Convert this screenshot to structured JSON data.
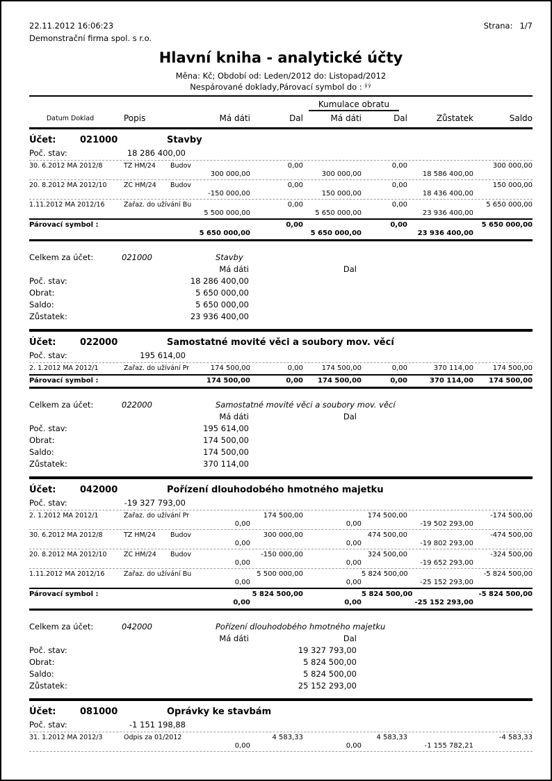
{
  "header": {
    "printed_at": "22.11.2012 16:06:23",
    "company": "Demonstrační firma spol. s r.o.",
    "page_label": "Strana:",
    "page_number": "1/7",
    "title": "Hlavní kniha - analytické účty",
    "subtitle_period": "Měna: Kč; Období od: Leden/2012 do: Listopad/2012",
    "subtitle_filter": "Nespárované doklady,Párovací symbol do : ",
    "subtitle_filter_suffix": "ÿÿ"
  },
  "columns": {
    "datum": "Datum Doklad",
    "popis": "Popis",
    "ma_dati": "Má dáti",
    "dal": "Dal",
    "kumulace": "Kumulace obratu",
    "kum_ma_dati": "Má dáti",
    "kum_dal": "Dal",
    "zustatek": "Zůstatek",
    "saldo": "Saldo"
  },
  "labels": {
    "ucet": "Účet:",
    "poc_stav": "Poč. stav:",
    "parovaci": "Párovací symbol :",
    "celkem": "Celkem za účet:",
    "ma_dati": "Má dáti",
    "dal": "Dal"
  },
  "summary_row_labels": [
    "Poč. stav:",
    "Obrat:",
    "Saldo:",
    "Zůstatek:"
  ],
  "accounts": [
    {
      "number": "021000",
      "name": "Stavby",
      "poc_stav": "18 286 400,00",
      "rows": [
        {
          "datum": "30. 6.2012 MA 2012/8",
          "popis": "TZ HM/24",
          "popis2": "Budov",
          "line1": {
            "dal": "0,00",
            "kum_dal": "0,00",
            "saldo": "300 000,00"
          },
          "line2": {
            "ma_dati": "300 000,00",
            "kum_ma_dati": "300 000,00",
            "zustatek": "18 586 400,00"
          }
        },
        {
          "datum": "20. 8.2012 MA 2012/10",
          "popis": "ZC HM/24",
          "popis2": "Budov",
          "line1": {
            "dal": "0,00",
            "kum_dal": "0,00",
            "saldo": "150 000,00"
          },
          "line2": {
            "ma_dati": "-150 000,00",
            "kum_ma_dati": "150 000,00",
            "zustatek": "18 436 400,00"
          }
        },
        {
          "datum": "1.11.2012 MA 2012/16",
          "popis": "Zařaz. do užívání Bu",
          "popis2": "",
          "line1": {
            "dal": "0,00",
            "kum_dal": "0,00",
            "saldo": "5 650 000,00"
          },
          "line2": {
            "ma_dati": "5 500 000,00",
            "kum_ma_dati": "5 650 000,00",
            "zustatek": "23 936 400,00"
          }
        }
      ],
      "parovaci": {
        "line1": {
          "dal": "0,00",
          "kum_dal": "0,00",
          "saldo": "5 650 000,00"
        },
        "line2": {
          "ma_dati": "5 650 000,00",
          "kum_ma_dati": "5 650 000,00",
          "zustatek": "23 936 400,00"
        }
      },
      "summary": {
        "column": "ma_dati",
        "values": [
          "18 286 400,00",
          "5 650 000,00",
          "5 650 000,00",
          "23 936 400,00"
        ]
      }
    },
    {
      "number": "022000",
      "name": "Samostatné movité věci a soubory mov. věcí",
      "poc_stav": "195 614,00",
      "rows": [
        {
          "datum": "2. 1.2012 MA 2012/1",
          "popis": "Zařaz. do užívání Pr",
          "popis2": "",
          "line1": {
            "ma_dati": "174 500,00",
            "dal": "0,00",
            "kum_ma_dati": "174 500,00",
            "kum_dal": "0,00",
            "zustatek": "370 114,00",
            "saldo": "174 500,00"
          }
        }
      ],
      "parovaci": {
        "line1": {
          "ma_dati": "174 500,00",
          "dal": "0,00",
          "kum_ma_dati": "174 500,00",
          "kum_dal": "0,00",
          "zustatek": "370 114,00",
          "saldo": "174 500,00"
        }
      },
      "summary": {
        "column": "ma_dati",
        "values": [
          "195 614,00",
          "174 500,00",
          "174 500,00",
          "370 114,00"
        ]
      }
    },
    {
      "number": "042000",
      "name": "Pořízení dlouhodobého hmotného majetku",
      "poc_stav": "-19 327 793,00",
      "rows": [
        {
          "datum": "2. 1.2012 MA 2012/1",
          "popis": "Zařaz. do užívání Pr",
          "popis2": "",
          "line1": {
            "dal": "174 500,00",
            "kum_dal": "174 500,00",
            "saldo": "-174 500,00"
          },
          "line2": {
            "ma_dati": "0,00",
            "kum_ma_dati": "0,00",
            "zustatek": "-19 502 293,00"
          }
        },
        {
          "datum": "30. 6.2012 MA 2012/8",
          "popis": "TZ HM/24",
          "popis2": "Budov",
          "line1": {
            "dal": "300 000,00",
            "kum_dal": "474 500,00",
            "saldo": "-474 500,00"
          },
          "line2": {
            "ma_dati": "0,00",
            "kum_ma_dati": "0,00",
            "zustatek": "-19 802 293,00"
          }
        },
        {
          "datum": "20. 8.2012 MA 2012/10",
          "popis": "ZC HM/24",
          "popis2": "Budov",
          "line1": {
            "dal": "-150 000,00",
            "kum_dal": "324 500,00",
            "saldo": "-324 500,00"
          },
          "line2": {
            "ma_dati": "0,00",
            "kum_ma_dati": "0,00",
            "zustatek": "-19 652 293,00"
          }
        },
        {
          "datum": "1.11.2012 MA 2012/16",
          "popis": "Zařaz. do užívání Bu",
          "popis2": "",
          "line1": {
            "dal": "5 500 000,00",
            "kum_dal": "5 824 500,00",
            "saldo": "-5 824 500,00"
          },
          "line2": {
            "ma_dati": "0,00",
            "kum_ma_dati": "0,00",
            "zustatek": "-25 152 293,00"
          }
        }
      ],
      "parovaci": {
        "line1": {
          "dal": "5 824 500,00",
          "kum_dal": "5 824 500,00",
          "saldo": "-5 824 500,00"
        },
        "line2": {
          "ma_dati": "0,00",
          "kum_ma_dati": "0,00",
          "zustatek": "-25 152 293,00"
        }
      },
      "summary": {
        "column": "dal",
        "values": [
          "19 327 793,00",
          "5 824 500,00",
          "5 824 500,00",
          "25 152 293,00"
        ]
      }
    },
    {
      "number": "081000",
      "name": "Oprávky ke stavbám",
      "poc_stav": "-1 151 198,88",
      "rows": [
        {
          "datum": "31. 1.2012 MA 2012/3",
          "popis": "Odpis za 01/2012",
          "popis2": "",
          "line1": {
            "dal": "4 583,33",
            "kum_dal": "4 583,33",
            "saldo": "-4 583,33"
          },
          "line2": {
            "ma_dati": "0,00",
            "kum_ma_dati": "0,00",
            "zustatek": "-1 155 782,21"
          }
        }
      ],
      "parovaci": null,
      "summary": null
    }
  ]
}
